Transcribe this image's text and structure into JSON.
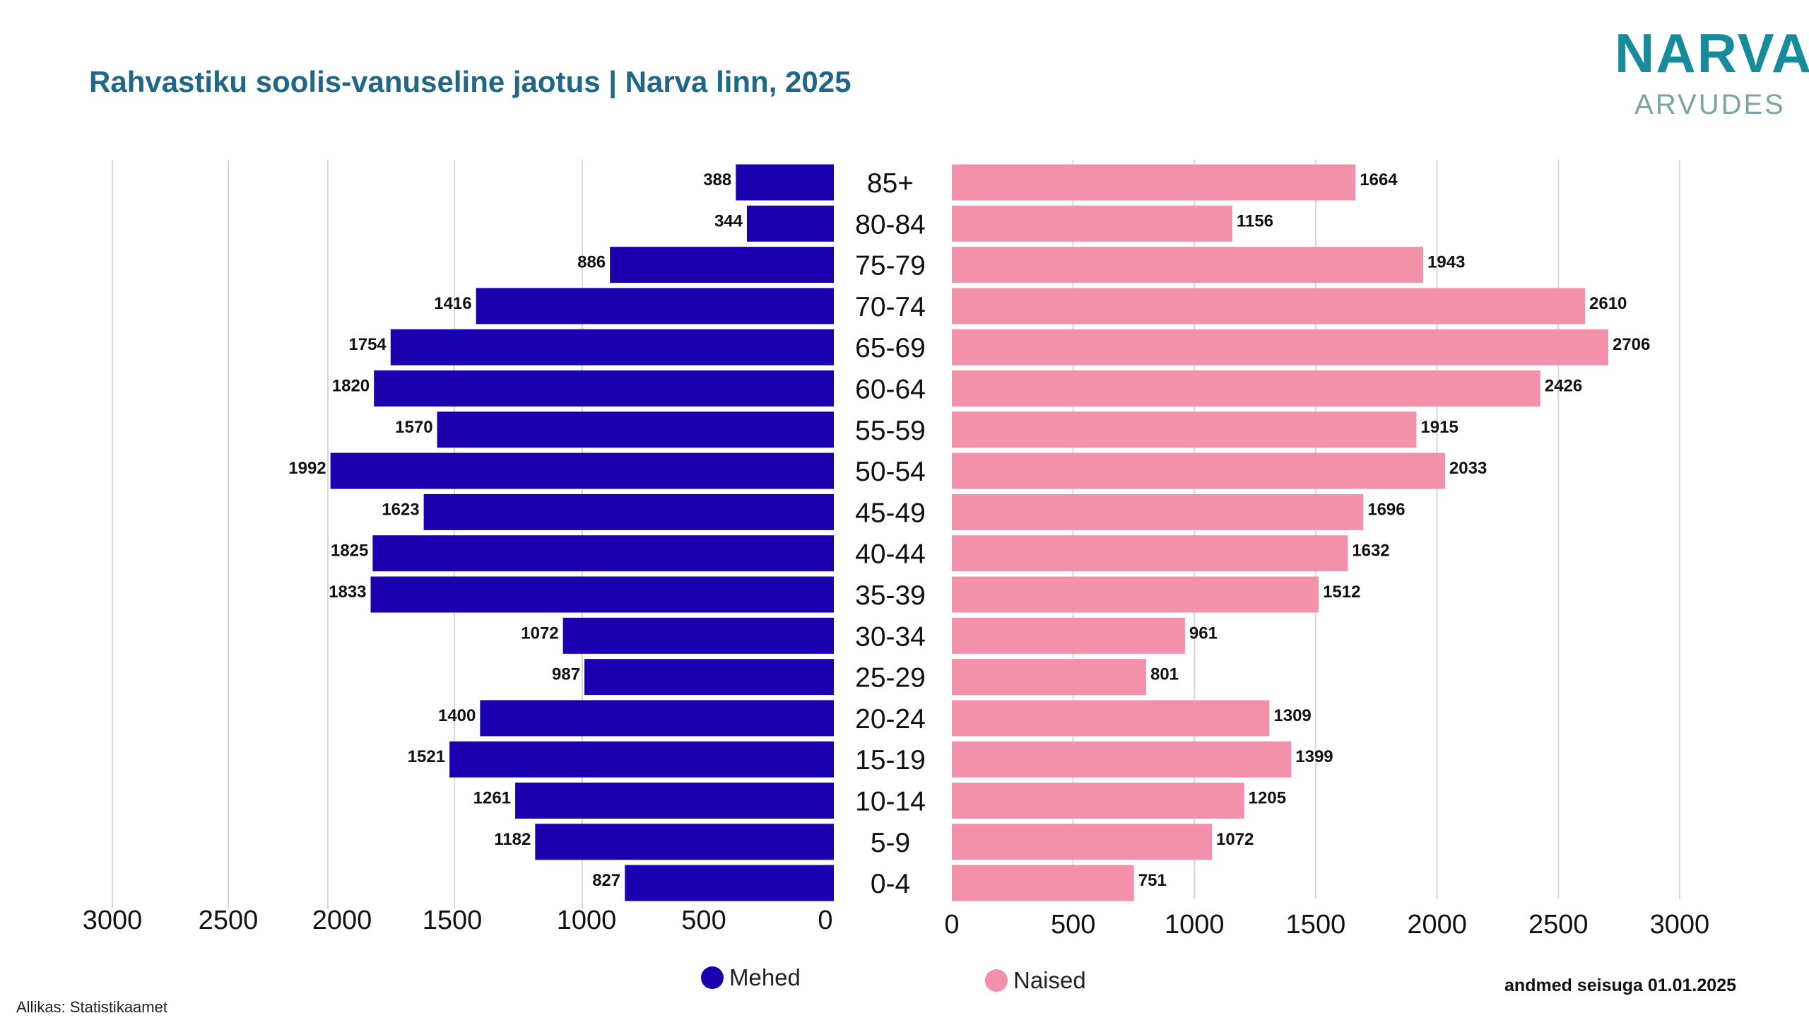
{
  "title": "Rahvastiku soolis-vanuseline jaotus | Narva linn, 2025",
  "logo": {
    "main": "NARVA",
    "sub": "ARVUDES"
  },
  "legend": [
    {
      "label": "Mehed",
      "color": "#1a00ae"
    },
    {
      "label": "Naised",
      "color": "#f391aa"
    }
  ],
  "date_note": "andmed seisuga 01.01.2025",
  "source": "Allikas: Statistikaamet",
  "chart_data": {
    "type": "bar",
    "orientation": "horizontal-population-pyramid",
    "categories": [
      "85+",
      "80-84",
      "75-79",
      "70-74",
      "65-69",
      "60-64",
      "55-59",
      "50-54",
      "45-49",
      "40-44",
      "35-39",
      "30-34",
      "25-29",
      "20-24",
      "15-19",
      "10-14",
      "5-9",
      "0-4"
    ],
    "series": [
      {
        "name": "Mehed",
        "color": "#1a00ae",
        "values": [
          388,
          344,
          886,
          1416,
          1754,
          1820,
          1570,
          1992,
          1623,
          1825,
          1833,
          1072,
          987,
          1400,
          1521,
          1261,
          1182,
          827
        ]
      },
      {
        "name": "Naised",
        "color": "#f391aa",
        "values": [
          1664,
          1156,
          1943,
          2610,
          2706,
          2426,
          1915,
          2033,
          1696,
          1632,
          1512,
          961,
          801,
          1309,
          1399,
          1205,
          1072,
          751
        ]
      }
    ],
    "left_axis_ticks": [
      "3000",
      "2500",
      "2000",
      "1500",
      "1000",
      "500",
      "0"
    ],
    "right_axis_ticks": [
      "0",
      "500",
      "1000",
      "1500",
      "2000",
      "2500",
      "3000"
    ],
    "xlim": [
      0,
      3000
    ],
    "grid": true,
    "data_labels": true,
    "legend_position": "bottom"
  }
}
